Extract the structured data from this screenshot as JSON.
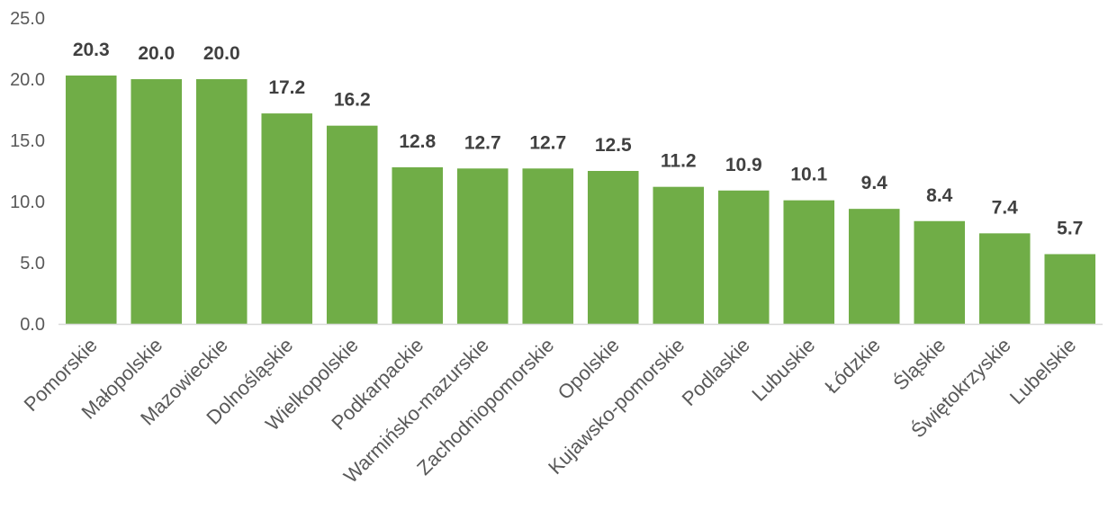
{
  "chart_data": {
    "type": "bar",
    "title": "",
    "xlabel": "",
    "ylabel": "",
    "categories": [
      "Pomorskie",
      "Małopolskie",
      "Mazowieckie",
      "Dolnośląskie",
      "Wielkopolskie",
      "Podkarpackie",
      "Warmińsko-mazurskie",
      "Zachodniopomorskie",
      "Opolskie",
      "Kujawsko-pomorskie",
      "Podlaskie",
      "Lubuskie",
      "Łódzkie",
      "Śląskie",
      "Świętokrzyskie",
      "Lubelskie"
    ],
    "values": [
      20.3,
      20.0,
      20.0,
      17.2,
      16.2,
      12.8,
      12.7,
      12.7,
      12.5,
      11.2,
      10.9,
      10.1,
      9.4,
      8.4,
      7.4,
      5.7
    ],
    "value_labels": [
      "20.3",
      "20.0",
      "20.0",
      "17.2",
      "16.2",
      "12.8",
      "12.7",
      "12.7",
      "12.5",
      "11.2",
      "10.9",
      "10.1",
      "9.4",
      "8.4",
      "7.4",
      "5.7"
    ],
    "ylim": [
      0,
      25
    ],
    "yticks": [
      "0.0",
      "5.0",
      "10.0",
      "15.0",
      "20.0",
      "25.0"
    ],
    "grid": false,
    "legend": "none",
    "bar_color": "#70AD47",
    "axis_color": "#D9D9D9"
  }
}
